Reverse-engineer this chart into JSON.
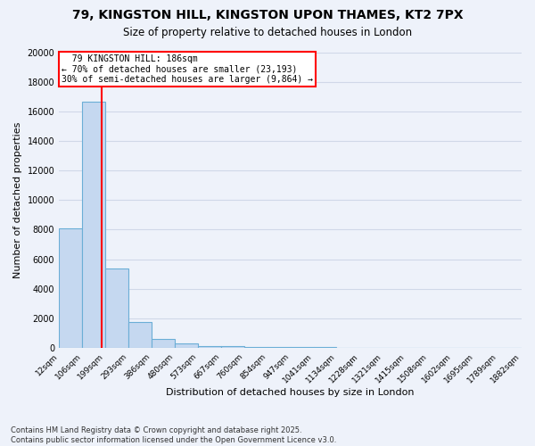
{
  "title_line1": "79, KINGSTON HILL, KINGSTON UPON THAMES, KT2 7PX",
  "title_line2": "Size of property relative to detached houses in London",
  "xlabel": "Distribution of detached houses by size in London",
  "ylabel": "Number of detached properties",
  "annotation_title": "79 KINGSTON HILL: 186sqm",
  "annotation_line2": "← 70% of detached houses are smaller (23,193)",
  "annotation_line3": "30% of semi-detached houses are larger (9,864) →",
  "footer_line1": "Contains HM Land Registry data © Crown copyright and database right 2025.",
  "footer_line2": "Contains public sector information licensed under the Open Government Licence v3.0.",
  "property_size": 186,
  "bar_color": "#c5d8f0",
  "bar_edge_color": "#6baed6",
  "vline_color": "red",
  "annotation_box_color": "red",
  "bin_edges": [
    12,
    106,
    199,
    293,
    386,
    480,
    573,
    667,
    760,
    854,
    947,
    1041,
    1134,
    1228,
    1321,
    1415,
    1508,
    1602,
    1695,
    1789,
    1882
  ],
  "bin_counts": [
    8100,
    16700,
    5350,
    1750,
    580,
    300,
    130,
    80,
    50,
    30,
    25,
    20,
    15,
    12,
    10,
    8,
    6,
    5,
    4,
    3
  ],
  "ylim": [
    0,
    20000
  ],
  "yticks": [
    0,
    2000,
    4000,
    6000,
    8000,
    10000,
    12000,
    14000,
    16000,
    18000,
    20000
  ],
  "background_color": "#eef2fa",
  "grid_color": "#d0d8e8"
}
